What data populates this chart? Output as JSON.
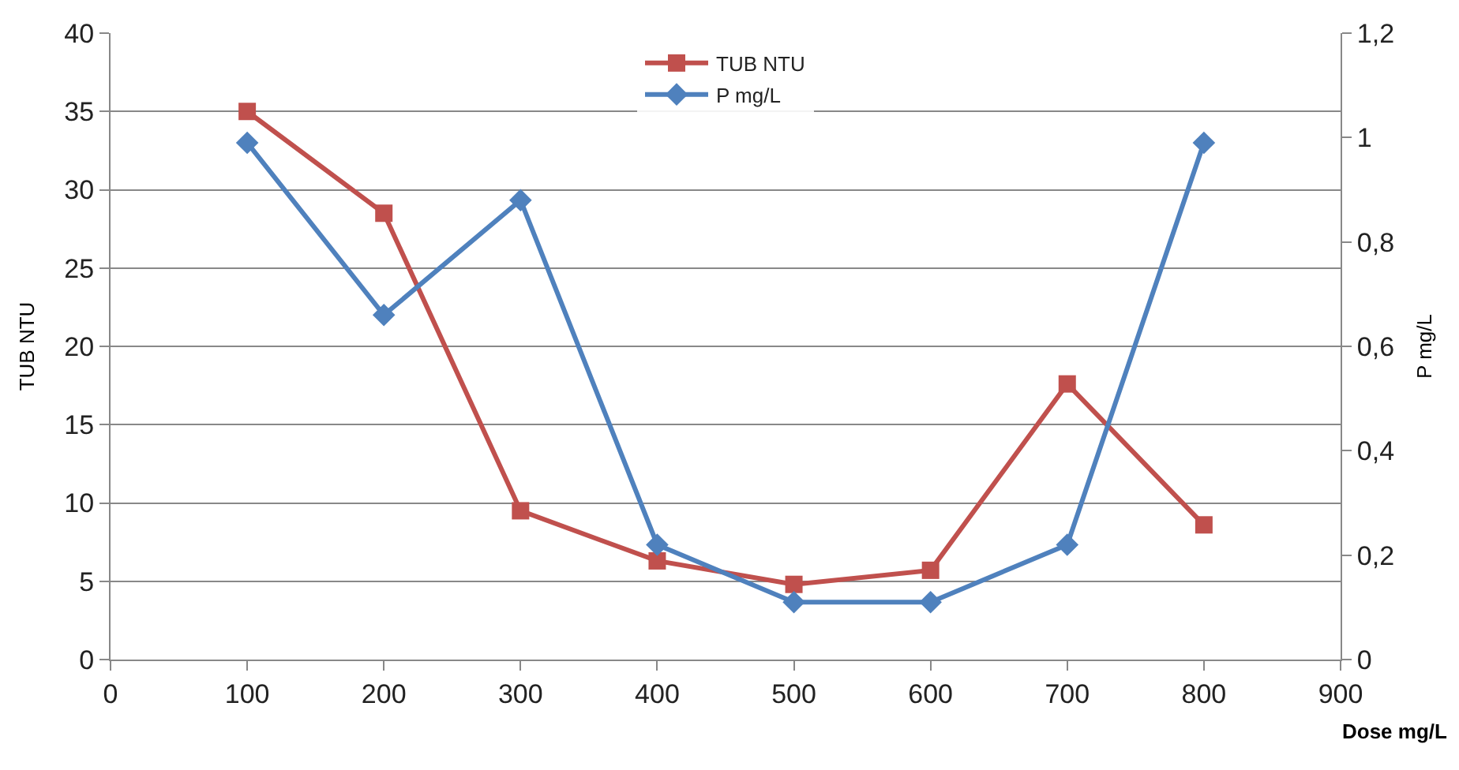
{
  "chart_data": {
    "type": "line",
    "x": [
      100,
      200,
      300,
      400,
      500,
      600,
      700,
      800
    ],
    "series": [
      {
        "name": "TUB NTU",
        "color": "#c0504d",
        "marker": "square",
        "values": [
          35,
          28.5,
          9.5,
          6.3,
          4.8,
          5.7,
          17.6,
          8.6
        ]
      },
      {
        "name": "P mg/L",
        "color": "#4f81bd",
        "marker": "diamond",
        "axis": "y2",
        "values": [
          0.99,
          0.66,
          0.88,
          0.22,
          0.11,
          0.11,
          0.22,
          0.99
        ]
      }
    ],
    "xlabel": "Dose mg/L",
    "ylabel": "TUB NTU",
    "y2label": "P mg/L",
    "xlim": [
      0,
      900
    ],
    "xticks": [
      0,
      100,
      200,
      300,
      400,
      500,
      600,
      700,
      800,
      900
    ],
    "ylim": [
      0,
      40
    ],
    "yticks": [
      0,
      5,
      10,
      15,
      20,
      25,
      30,
      35,
      40
    ],
    "y2lim": [
      0,
      1.2
    ],
    "y2ticks": [
      0,
      {
        "value": 0.2,
        "label": "0,2"
      },
      {
        "value": 0.4,
        "label": "0,4"
      },
      {
        "value": 0.6,
        "label": "0,6"
      },
      {
        "value": 0.8,
        "label": "0,8"
      },
      1,
      {
        "value": 1.2,
        "label": "1,2"
      }
    ],
    "grid": "y",
    "legend": "top",
    "line_style": "solid"
  }
}
